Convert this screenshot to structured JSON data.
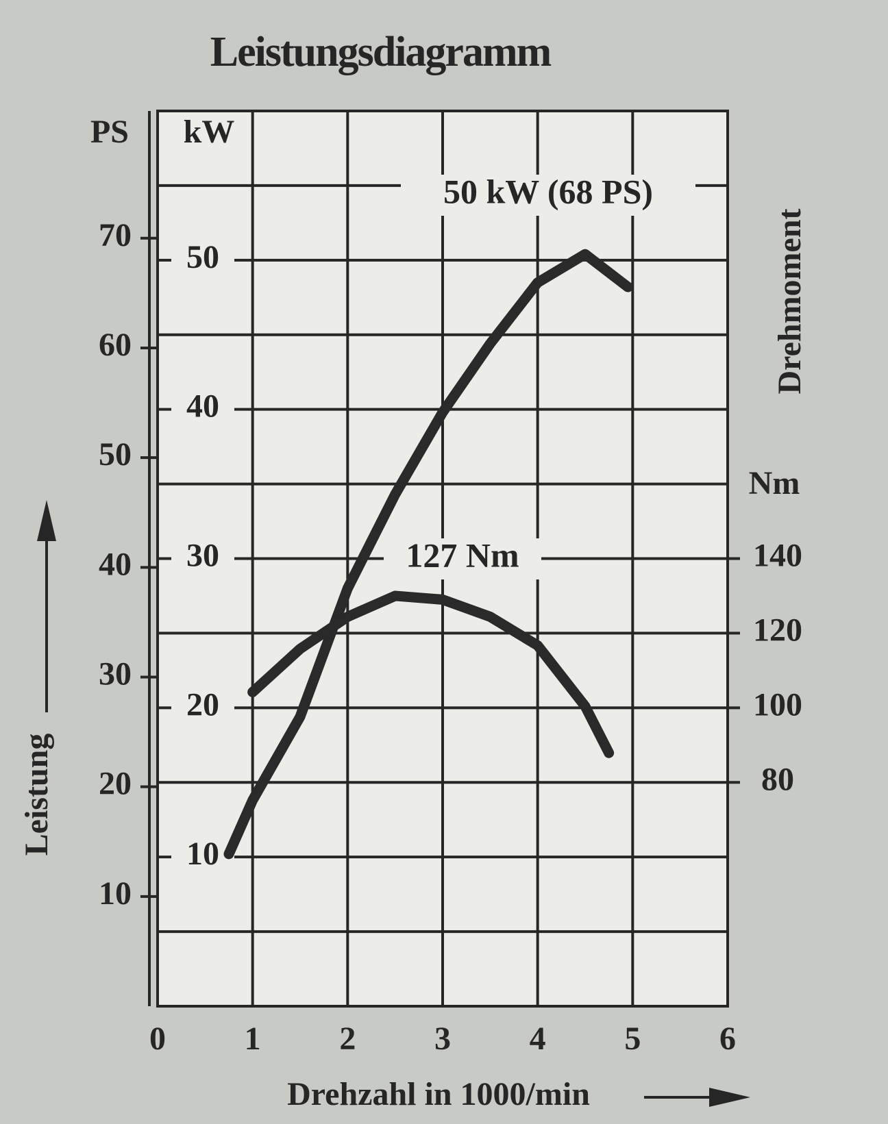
{
  "chart_data": {
    "type": "line",
    "title": "Leistungsdiagramm",
    "x_label": "Drehzahl in 1000/min",
    "y_label": "Leistung",
    "y_unit": "kW",
    "ps_unit": "PS",
    "y2_label": "Drehmoment",
    "y2_unit": "Nm",
    "xlim": [
      0,
      6
    ],
    "xticks": [
      0,
      1,
      2,
      3,
      4,
      5,
      6
    ],
    "ylim": [
      0,
      60
    ],
    "yticks": [
      10,
      20,
      30,
      40,
      50
    ],
    "ygrid": [
      5,
      15,
      25,
      35,
      45,
      55
    ],
    "ps_lim": [
      0,
      81.6
    ],
    "psticks": [
      10,
      20,
      30,
      40,
      50,
      60,
      70
    ],
    "y2lim": [
      20,
      260
    ],
    "y2ticks": [
      80,
      100,
      120,
      140
    ],
    "grid": true,
    "series": [
      {
        "color": "#2a2a2a",
        "x": [
          0.75,
          1,
          1.5,
          2,
          2.5,
          3,
          3.5,
          4,
          4.5,
          4.95
        ],
        "values": [
          10.2,
          13.8,
          19.4,
          28,
          34.3,
          39.8,
          44.4,
          48.5,
          50.4,
          48.2
        ]
      },
      {
        "color": "#2a2a2a",
        "axis": "y2",
        "x": [
          1,
          1.5,
          2,
          2.5,
          3,
          3.5,
          4,
          4.5,
          4.75
        ],
        "values": [
          104.2,
          115.8,
          124.4,
          130,
          129,
          124.4,
          116.7,
          100.4,
          87.9
        ]
      }
    ],
    "annotations": [
      "50 kW (68 PS)",
      "127 Nm"
    ]
  }
}
